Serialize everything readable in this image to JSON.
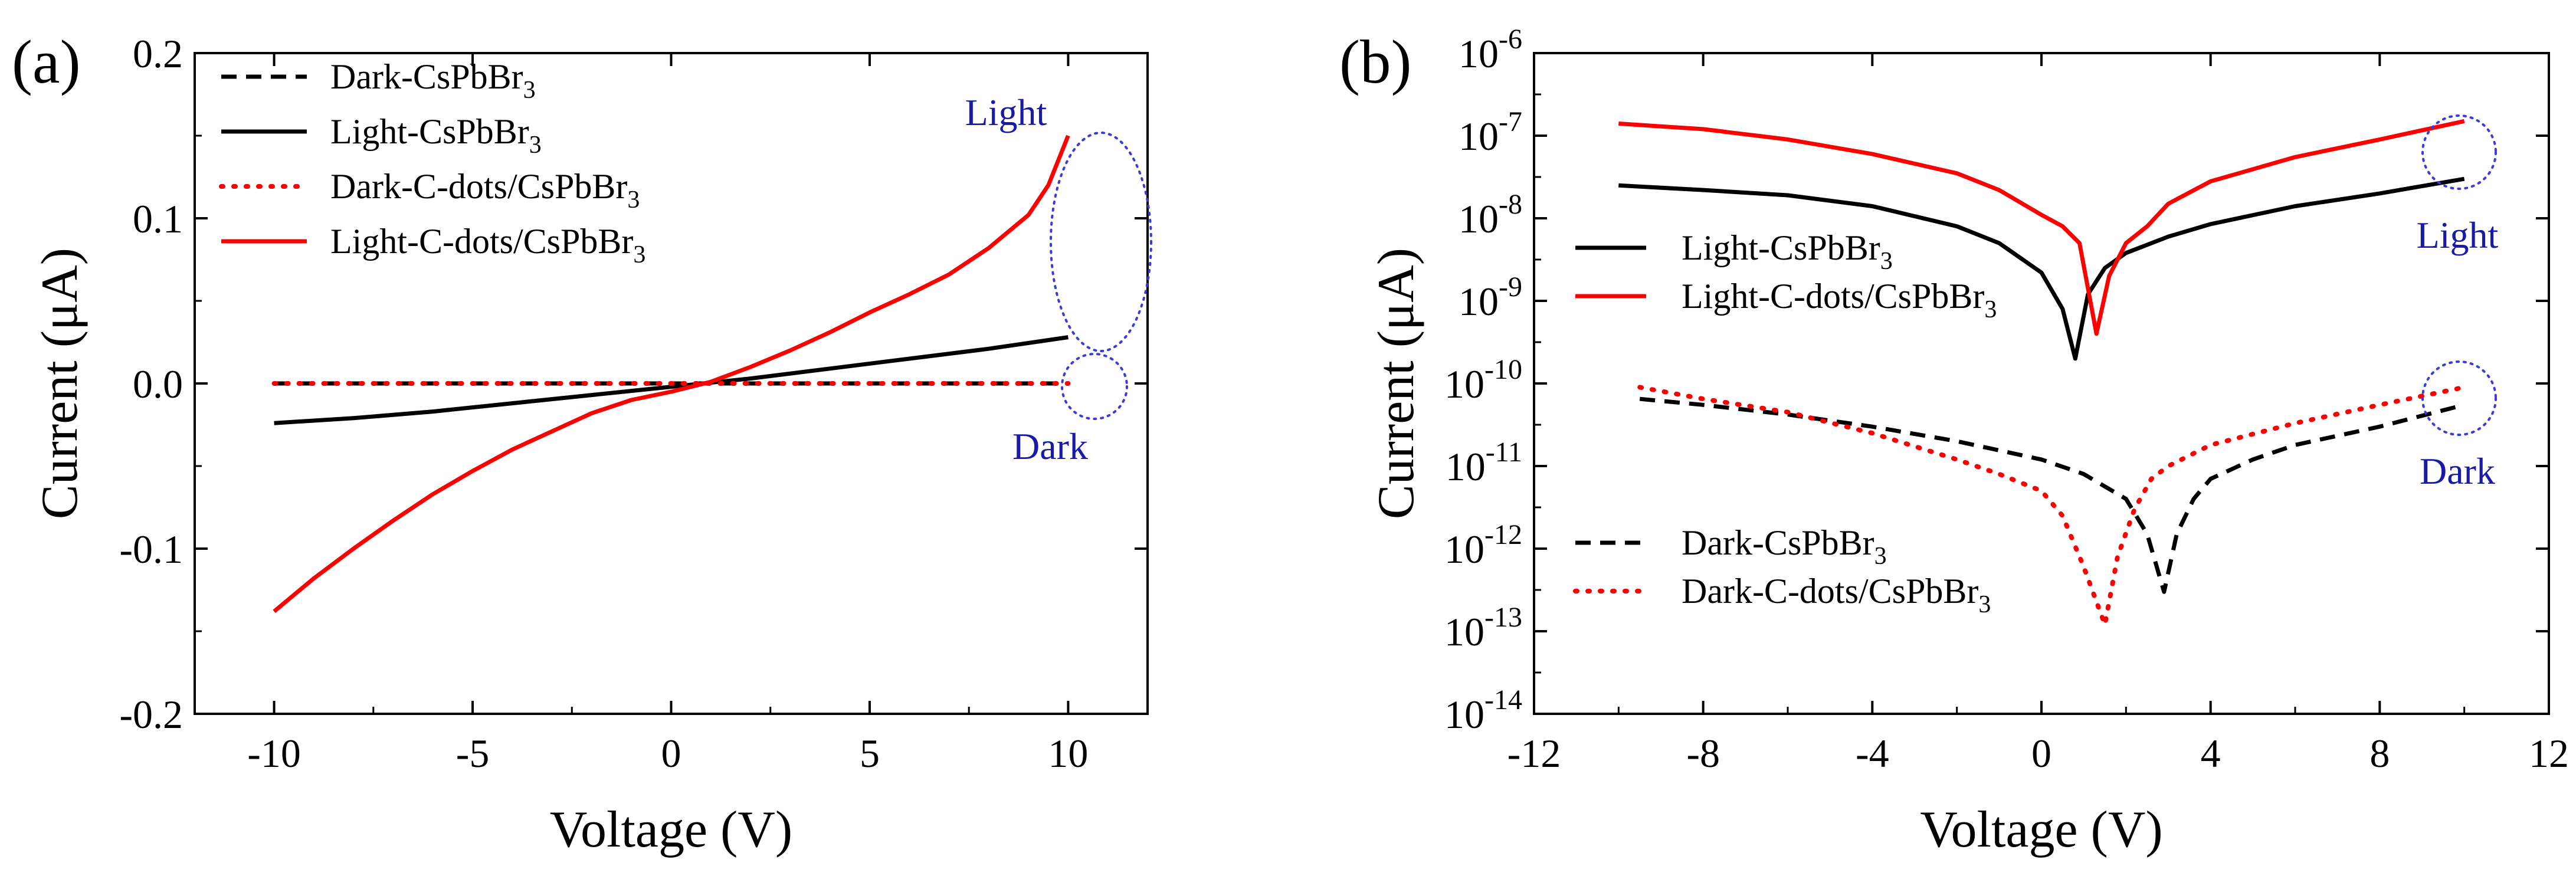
{
  "chart_data": [
    {
      "panel_label": "(a)",
      "type": "line",
      "xlabel": "Voltage (V)",
      "ylabel": "Current (μA)",
      "xlim": [
        -12,
        12
      ],
      "ylim": [
        -0.2,
        0.2
      ],
      "x_ticks": [
        -10,
        -5,
        0,
        5,
        10
      ],
      "x_tick_labels": [
        "-10",
        "-5",
        "0",
        "5",
        "10"
      ],
      "y_ticks": [
        -0.2,
        -0.1,
        0.0,
        0.1,
        0.2
      ],
      "y_tick_labels": [
        "-0.2",
        "-0.1",
        "0.0",
        "0.1",
        "0.2"
      ],
      "y_scale": "linear",
      "grid": false,
      "legend_position": "top-left",
      "series": [
        {
          "name": "Dark-CsPbBr3",
          "legend_parts": [
            "Dark-CsPbBr",
            "3"
          ],
          "color": "#000000",
          "style": "dashed",
          "x": [
            -10,
            -5,
            0,
            5,
            10
          ],
          "y": [
            0,
            0,
            0,
            0,
            0
          ]
        },
        {
          "name": "Light-CsPbBr3",
          "legend_parts": [
            "Light-CsPbBr",
            "3"
          ],
          "color": "#000000",
          "style": "solid",
          "x": [
            -10,
            -8,
            -6,
            -4,
            -2,
            0,
            2,
            4,
            6,
            8,
            10
          ],
          "y": [
            -0.024,
            -0.021,
            -0.017,
            -0.012,
            -0.007,
            -0.002,
            0.003,
            0.009,
            0.015,
            0.021,
            0.028
          ]
        },
        {
          "name": "Dark-C-dots/CsPbBr3",
          "legend_parts": [
            "Dark-C-dots/CsPbBr",
            "3"
          ],
          "color": "#ff0000",
          "style": "dotted",
          "x": [
            -10,
            -5,
            0,
            5,
            10
          ],
          "y": [
            0,
            0,
            0,
            0,
            0
          ]
        },
        {
          "name": "Light-C-dots/CsPbBr3",
          "legend_parts": [
            "Light-C-dots/CsPbBr",
            "3"
          ],
          "color": "#ff0000",
          "style": "solid",
          "x": [
            -10,
            -9,
            -8,
            -7,
            -6,
            -5,
            -4,
            -3,
            -2,
            -1,
            0,
            1,
            2,
            3,
            4,
            5,
            6,
            7,
            8,
            9,
            9.5,
            10
          ],
          "y": [
            -0.138,
            -0.118,
            -0.1,
            -0.083,
            -0.067,
            -0.053,
            -0.04,
            -0.029,
            -0.018,
            -0.01,
            -0.005,
            0.001,
            0.01,
            0.02,
            0.031,
            0.043,
            0.054,
            0.066,
            0.082,
            0.102,
            0.12,
            0.15
          ]
        }
      ],
      "annotations": [
        {
          "text": "Light",
          "color": "#1a1aa6"
        },
        {
          "text": "Dark",
          "color": "#1a1aa6"
        }
      ]
    },
    {
      "panel_label": "(b)",
      "type": "line",
      "xlabel": "Voltage (V)",
      "ylabel": "Current (μA)",
      "xlim": [
        -12,
        12
      ],
      "ylim": [
        1e-14,
        1e-06
      ],
      "x_ticks": [
        -12,
        -8,
        -4,
        0,
        4,
        8,
        12
      ],
      "x_tick_labels": [
        "-12",
        "-8",
        "-4",
        "0",
        "4",
        "8",
        "12"
      ],
      "y_ticks": [
        -14,
        -13,
        -12,
        -11,
        -10,
        -9,
        -8,
        -7,
        -6
      ],
      "y_tick_labels": [
        "-14",
        "-13",
        "-12",
        "-11",
        "-10",
        "-9",
        "-8",
        "-7",
        "-6"
      ],
      "y_tick_base": "10",
      "y_scale": "log",
      "grid": false,
      "legend_position": "left",
      "series": [
        {
          "name": "Light-CsPbBr3",
          "legend_parts": [
            "Light-CsPbBr",
            "3"
          ],
          "color": "#000000",
          "style": "solid",
          "x": [
            -10,
            -8,
            -6,
            -4,
            -2,
            -1,
            0,
            0.5,
            0.8,
            1.1,
            1.5,
            2,
            3,
            4,
            6,
            8,
            10
          ],
          "y": [
            2.5e-08,
            2.2e-08,
            1.9e-08,
            1.4e-08,
            8e-09,
            5e-09,
            2.2e-09,
            8e-10,
            2e-10,
            1.2e-09,
            2.5e-09,
            3.8e-09,
            6e-09,
            8.5e-09,
            1.4e-08,
            2e-08,
            3e-08
          ]
        },
        {
          "name": "Light-C-dots/CsPbBr3",
          "legend_parts": [
            "Light-C-dots/CsPbBr",
            "3"
          ],
          "color": "#ff0000",
          "style": "solid",
          "x": [
            -10,
            -8,
            -6,
            -4,
            -2,
            -1,
            0,
            0.5,
            0.9,
            1.3,
            1.6,
            2,
            2.5,
            3,
            4,
            6,
            8,
            10
          ],
          "y": [
            1.4e-07,
            1.2e-07,
            9e-08,
            6e-08,
            3.5e-08,
            2.2e-08,
            1.1e-08,
            8e-09,
            5e-09,
            4e-10,
            2e-09,
            5e-09,
            8e-09,
            1.5e-08,
            2.8e-08,
            5.5e-08,
            9e-08,
            1.5e-07
          ]
        },
        {
          "name": "Dark-CsPbBr3",
          "legend_parts": [
            "Dark-CsPbBr",
            "3"
          ],
          "color": "#000000",
          "style": "dashed",
          "x": [
            -9.5,
            -8,
            -6,
            -4,
            -2,
            0,
            1,
            2,
            2.5,
            2.9,
            3.2,
            3.6,
            4,
            5,
            6,
            8,
            10
          ],
          "y": [
            6.5e-11,
            5.5e-11,
            4.2e-11,
            3e-11,
            2e-11,
            1.2e-11,
            8e-12,
            4e-12,
            1.5e-12,
            3e-13,
            1.5e-12,
            4e-12,
            7e-12,
            1.2e-11,
            1.8e-11,
            3e-11,
            5.5e-11
          ]
        },
        {
          "name": "Dark-C-dots/CsPbBr3",
          "legend_parts": [
            "Dark-C-dots/CsPbBr",
            "3"
          ],
          "color": "#ff0000",
          "style": "dotted",
          "x": [
            -9.5,
            -8,
            -6,
            -4,
            -2,
            -1,
            0,
            0.5,
            1,
            1.5,
            1.8,
            2.2,
            2.6,
            3,
            4,
            6,
            8,
            10
          ],
          "y": [
            9e-11,
            6.5e-11,
            4.5e-11,
            2.5e-11,
            1.2e-11,
            8e-12,
            5e-12,
            2.5e-12,
            6e-13,
            1.2e-13,
            8e-13,
            3e-12,
            7e-12,
            1e-11,
            1.8e-11,
            3.3e-11,
            5.5e-11,
            9e-11
          ]
        }
      ],
      "annotations": [
        {
          "text": "Light",
          "color": "#1a1aa6"
        },
        {
          "text": "Dark",
          "color": "#1a1aa6"
        }
      ]
    }
  ]
}
